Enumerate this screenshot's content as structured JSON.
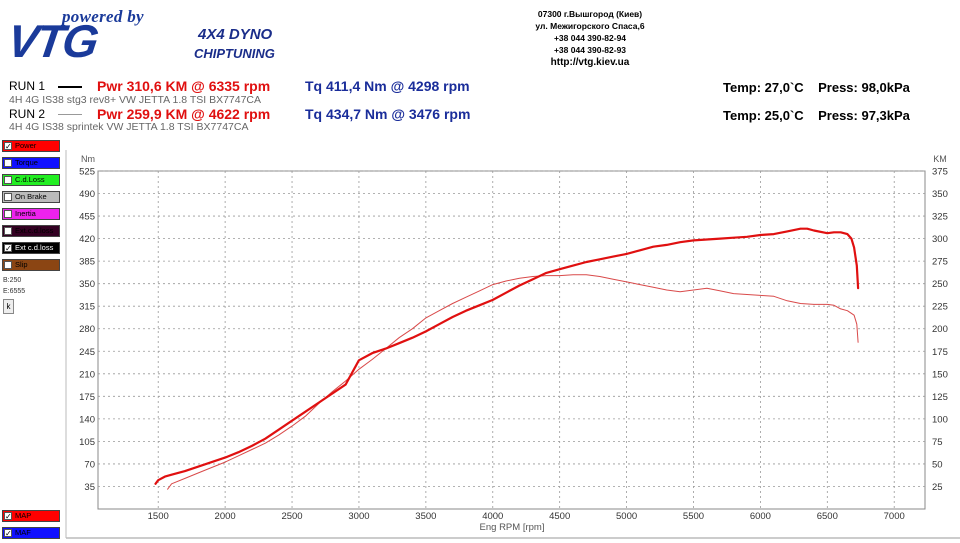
{
  "header": {
    "logo_powered": "powered by",
    "logo_brand": "VTG",
    "logo_dyno": "4X4 DYNO",
    "logo_chip": "CHIPTUNING",
    "address_lines": [
      "07300 г.Вышгород (Киев)",
      "ул. Межигорского Спаса,6",
      "+38 044 390-82-94",
      "+38 044 390-82-93"
    ],
    "url": "http://vtg.kiev.ua"
  },
  "runs": [
    {
      "label": "RUN 1",
      "power": "Pwr  310,6 KM @ 6335 rpm",
      "torque": "Tq 411,4 Nm @ 4298 rpm",
      "conditions": "Temp: 27,0`C    Press: 98,0kPa",
      "description": "4H 4G  IS38 stg3 rev8+ VW JETTA 1.8 TSI BX7747CA",
      "line_color": "#000000"
    },
    {
      "label": "RUN 2",
      "power": "Pwr  259,9 KM @ 4622 rpm",
      "torque": "Tq 434,7 Nm @ 3476 rpm",
      "conditions": "Temp: 25,0`C    Press: 97,3kPa",
      "description": "4H 4G  IS38 sprintek VW JETTA 1.8 TSI BX7747CA",
      "line_color": "#999999"
    }
  ],
  "legend": [
    {
      "label": "Power",
      "color": "#ff0000",
      "checked": true,
      "text_color": "#000000"
    },
    {
      "label": "Torque",
      "color": "#1010ff",
      "checked": false,
      "text_color": "#000000"
    },
    {
      "label": "C.d.Loss",
      "color": "#22ee22",
      "checked": false,
      "text_color": "#000000"
    },
    {
      "label": "On Brake",
      "color": "#bbbbbb",
      "checked": false,
      "text_color": "#000000"
    },
    {
      "label": "Inertia",
      "color": "#ee22ee",
      "checked": false,
      "text_color": "#000000"
    },
    {
      "label": "Ext.c.d.loss",
      "color": "#330022",
      "checked": false,
      "text_color": "#000000"
    },
    {
      "label": "Ext c.d.loss",
      "color": "#000000",
      "checked": true,
      "text_color": "#ffffff"
    },
    {
      "label": "Slip",
      "color": "#8b4513",
      "checked": false,
      "text_color": "#000000"
    }
  ],
  "legend_bottom": [
    {
      "label": "MAP",
      "color": "#ff0000",
      "checked": true
    },
    {
      "label": "MAF",
      "color": "#1010ff",
      "checked": true
    }
  ],
  "side_labels": {
    "b": "B:250",
    "e": "E:6555",
    "k": "k"
  },
  "chart_data": {
    "type": "line",
    "xlabel": "Eng RPM [rpm]",
    "ylabel_left": "Nm",
    "ylabel_right": "KM",
    "xlim": [
      1050,
      7230
    ],
    "ylim_left": [
      0,
      525
    ],
    "ylim_right": [
      0,
      375
    ],
    "x_ticks": [
      1500,
      2000,
      2500,
      3000,
      3500,
      4000,
      4500,
      5000,
      5500,
      6000,
      6500,
      7000
    ],
    "y_left_ticks": [
      35,
      70,
      105,
      140,
      175,
      210,
      245,
      280,
      315,
      350,
      385,
      420,
      455,
      490,
      525
    ],
    "y_right_ticks": [
      25,
      50,
      75,
      100,
      125,
      150,
      175,
      200,
      225,
      250,
      275,
      300,
      325,
      350,
      375
    ],
    "grid": true,
    "series": [
      {
        "name": "RUN 1",
        "axis": "right",
        "color": "#e01010",
        "width": 2.2,
        "points": [
          [
            1480,
            28
          ],
          [
            1500,
            32
          ],
          [
            1550,
            36
          ],
          [
            1600,
            38
          ],
          [
            1700,
            42
          ],
          [
            1800,
            47
          ],
          [
            1900,
            52
          ],
          [
            2000,
            57
          ],
          [
            2100,
            63
          ],
          [
            2200,
            70
          ],
          [
            2300,
            78
          ],
          [
            2400,
            88
          ],
          [
            2500,
            98
          ],
          [
            2600,
            108
          ],
          [
            2700,
            118
          ],
          [
            2800,
            128
          ],
          [
            2900,
            138
          ],
          [
            3000,
            165
          ],
          [
            3100,
            173
          ],
          [
            3200,
            178
          ],
          [
            3300,
            184
          ],
          [
            3400,
            190
          ],
          [
            3500,
            197
          ],
          [
            3600,
            205
          ],
          [
            3700,
            213
          ],
          [
            3800,
            220
          ],
          [
            3900,
            226
          ],
          [
            4000,
            232
          ],
          [
            4100,
            240
          ],
          [
            4200,
            248
          ],
          [
            4300,
            255
          ],
          [
            4400,
            262
          ],
          [
            4500,
            266
          ],
          [
            4600,
            270
          ],
          [
            4700,
            274
          ],
          [
            4800,
            277
          ],
          [
            4900,
            280
          ],
          [
            5000,
            283
          ],
          [
            5100,
            287
          ],
          [
            5200,
            291
          ],
          [
            5300,
            293
          ],
          [
            5400,
            296
          ],
          [
            5500,
            298
          ],
          [
            5600,
            299
          ],
          [
            5700,
            300
          ],
          [
            5800,
            301
          ],
          [
            5900,
            302
          ],
          [
            6000,
            304
          ],
          [
            6100,
            305
          ],
          [
            6200,
            308
          ],
          [
            6300,
            311
          ],
          [
            6350,
            311
          ],
          [
            6400,
            309
          ],
          [
            6500,
            306
          ],
          [
            6550,
            307
          ],
          [
            6600,
            307
          ],
          [
            6650,
            305
          ],
          [
            6680,
            300
          ],
          [
            6700,
            290
          ],
          [
            6720,
            270
          ],
          [
            6730,
            245
          ]
        ]
      },
      {
        "name": "RUN 2",
        "axis": "right",
        "color": "#d94a4a",
        "width": 1,
        "points": [
          [
            1570,
            22
          ],
          [
            1600,
            28
          ],
          [
            1700,
            34
          ],
          [
            1800,
            40
          ],
          [
            1900,
            46
          ],
          [
            2000,
            52
          ],
          [
            2100,
            59
          ],
          [
            2200,
            66
          ],
          [
            2300,
            73
          ],
          [
            2400,
            82
          ],
          [
            2500,
            92
          ],
          [
            2600,
            103
          ],
          [
            2700,
            117
          ],
          [
            2800,
            130
          ],
          [
            2900,
            142
          ],
          [
            3000,
            155
          ],
          [
            3100,
            166
          ],
          [
            3200,
            178
          ],
          [
            3300,
            190
          ],
          [
            3400,
            200
          ],
          [
            3500,
            212
          ],
          [
            3600,
            220
          ],
          [
            3700,
            228
          ],
          [
            3800,
            235
          ],
          [
            3900,
            242
          ],
          [
            4000,
            249
          ],
          [
            4100,
            253
          ],
          [
            4200,
            256
          ],
          [
            4300,
            258
          ],
          [
            4400,
            259
          ],
          [
            4500,
            259
          ],
          [
            4600,
            260
          ],
          [
            4700,
            260
          ],
          [
            4800,
            258
          ],
          [
            4900,
            255
          ],
          [
            5000,
            252
          ],
          [
            5100,
            249
          ],
          [
            5200,
            246
          ],
          [
            5300,
            243
          ],
          [
            5400,
            241
          ],
          [
            5500,
            243
          ],
          [
            5600,
            245
          ],
          [
            5700,
            242
          ],
          [
            5800,
            239
          ],
          [
            5900,
            238
          ],
          [
            6000,
            237
          ],
          [
            6100,
            236
          ],
          [
            6200,
            231
          ],
          [
            6300,
            228
          ],
          [
            6400,
            227
          ],
          [
            6500,
            227
          ],
          [
            6550,
            226
          ],
          [
            6600,
            222
          ],
          [
            6650,
            220
          ],
          [
            6700,
            215
          ],
          [
            6720,
            205
          ],
          [
            6730,
            185
          ]
        ]
      }
    ]
  }
}
